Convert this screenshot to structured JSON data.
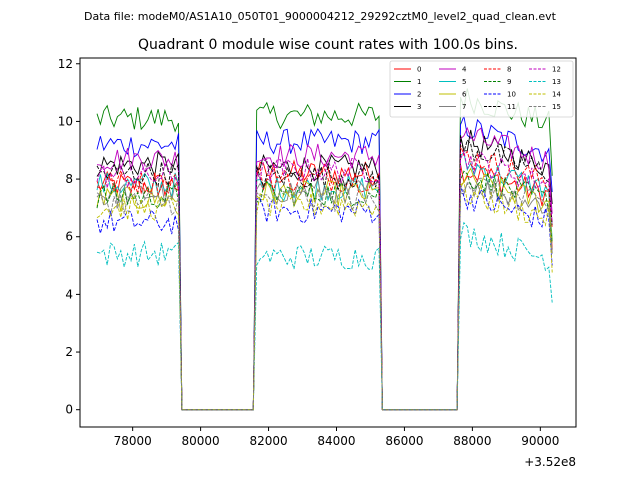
{
  "suptitle": "Data file: modeM0/AS1A10_050T01_9000004212_29292cztM0_level2_quad_clean.evt",
  "chart_data": {
    "type": "line",
    "title": "Quadrant 0 module wise count rates with 100.0s bins.",
    "xlabel": "",
    "ylabel": "",
    "x_offset_label": "+3.52e8",
    "xlim": [
      76450,
      91050
    ],
    "ylim": [
      -0.6,
      12.2
    ],
    "xticks": [
      78000,
      80000,
      82000,
      84000,
      86000,
      88000,
      90000
    ],
    "xtick_labels": [
      "78000",
      "80000",
      "82000",
      "84000",
      "86000",
      "88000",
      "90000"
    ],
    "yticks": [
      0,
      2,
      4,
      6,
      8,
      10,
      12
    ],
    "ytick_labels": [
      "0",
      "2",
      "4",
      "6",
      "8",
      "10",
      "12"
    ],
    "bin_seconds": 100,
    "x_start": 76950,
    "x_end": 90350,
    "gaps": [
      [
        79450,
        81550
      ],
      [
        85350,
        87550
      ]
    ],
    "legend_position": "top-right",
    "series": [
      {
        "name": "0",
        "color": "#ff0000",
        "dash": "solid",
        "segments": [
          7.8,
          8.2,
          8.4
        ]
      },
      {
        "name": "1",
        "color": "#008000",
        "dash": "solid",
        "segments": [
          10.1,
          10.2,
          10.9
        ]
      },
      {
        "name": "2",
        "color": "#0000ff",
        "dash": "solid",
        "segments": [
          9.2,
          9.3,
          9.9
        ]
      },
      {
        "name": "3",
        "color": "#000000",
        "dash": "solid",
        "segments": [
          8.5,
          8.4,
          9.4
        ]
      },
      {
        "name": "4",
        "color": "#bf00bf",
        "dash": "solid",
        "segments": [
          8.7,
          8.8,
          9.6
        ]
      },
      {
        "name": "5",
        "color": "#00bfbf",
        "dash": "solid",
        "segments": [
          7.8,
          7.7,
          8.6
        ]
      },
      {
        "name": "6",
        "color": "#bfbf00",
        "dash": "solid",
        "segments": [
          7.3,
          7.5,
          8.1
        ]
      },
      {
        "name": "7",
        "color": "#808080",
        "dash": "solid",
        "segments": [
          7.5,
          7.6,
          8.0
        ]
      },
      {
        "name": "8",
        "color": "#ff0000",
        "dash": "dashed",
        "segments": [
          7.9,
          8.0,
          8.9
        ]
      },
      {
        "name": "9",
        "color": "#008000",
        "dash": "dashed",
        "segments": [
          7.4,
          7.5,
          8.2
        ]
      },
      {
        "name": "10",
        "color": "#0000ff",
        "dash": "dashed",
        "segments": [
          6.5,
          6.9,
          7.5
        ]
      },
      {
        "name": "11",
        "color": "#000000",
        "dash": "dashed",
        "segments": [
          8.2,
          8.1,
          9.2
        ]
      },
      {
        "name": "12",
        "color": "#bf00bf",
        "dash": "dashed",
        "segments": [
          8.1,
          8.3,
          8.8
        ]
      },
      {
        "name": "13",
        "color": "#00bfbf",
        "dash": "dashed",
        "segments": [
          5.4,
          5.3,
          6.2
        ]
      },
      {
        "name": "14",
        "color": "#bfbf00",
        "dash": "dashed",
        "segments": [
          7.0,
          7.1,
          7.6
        ]
      },
      {
        "name": "15",
        "color": "#808080",
        "dash": "dashed",
        "segments": [
          7.2,
          7.3,
          8.0
        ]
      }
    ]
  }
}
